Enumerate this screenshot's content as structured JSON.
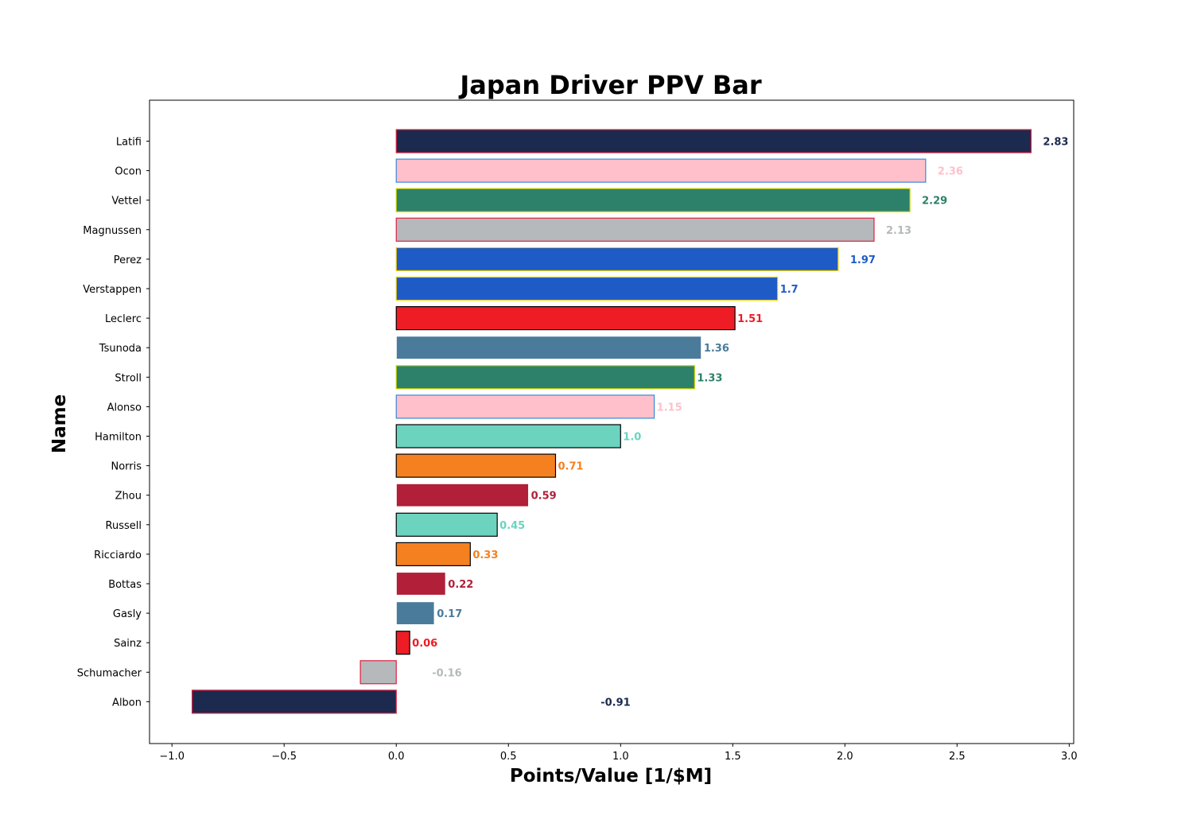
{
  "chart_data": {
    "type": "bar",
    "orientation": "horizontal",
    "title": "Japan Driver PPV Bar",
    "xlabel": "Points/Value [1/$M]",
    "ylabel": "Name",
    "xlim": [
      -1.1,
      3.02
    ],
    "xticks": [
      -1.0,
      -0.5,
      0.0,
      0.5,
      1.0,
      1.5,
      2.0,
      2.5,
      3.0
    ],
    "xtick_labels": [
      "−1.0",
      "−0.5",
      "0.0",
      "0.5",
      "1.0",
      "1.5",
      "2.0",
      "2.5",
      "3.0"
    ],
    "grid": false,
    "categories": [
      "Latifi",
      "Ocon",
      "Vettel",
      "Magnussen",
      "Perez",
      "Verstappen",
      "Leclerc",
      "Tsunoda",
      "Stroll",
      "Alonso",
      "Hamilton",
      "Norris",
      "Zhou",
      "Russell",
      "Ricciardo",
      "Bottas",
      "Gasly",
      "Sainz",
      "Schumacher",
      "Albon"
    ],
    "values": [
      2.83,
      2.36,
      2.29,
      2.13,
      1.97,
      1.7,
      1.51,
      1.36,
      1.33,
      1.15,
      1.0,
      0.71,
      0.59,
      0.45,
      0.33,
      0.22,
      0.17,
      0.06,
      -0.16,
      -0.91
    ],
    "value_labels": [
      "2.83",
      "2.36",
      "2.29",
      "2.13",
      "1.97",
      "1.7",
      "1.51",
      "1.36",
      "1.33",
      "1.15",
      "1.0",
      "0.71",
      "0.59",
      "0.45",
      "0.33",
      "0.22",
      "0.17",
      "0.06",
      "-0.16",
      "-0.91"
    ],
    "fill_colors": [
      "#1b2a4e",
      "#ffc0cb",
      "#2d806a",
      "#b6b9bb",
      "#1f5bc7",
      "#1f5bc7",
      "#ee1c24",
      "#4a7b9b",
      "#2d806a",
      "#ffc0cb",
      "#6cd3bf",
      "#f58020",
      "#b11f38",
      "#6cd3bf",
      "#f58020",
      "#b11f38",
      "#4a7b9b",
      "#ee1c24",
      "#b6b9bb",
      "#1b2a4e"
    ],
    "edge_colors": [
      "#dc2040",
      "#3b87d8",
      "#c8d400",
      "#dc2040",
      "#f2d000",
      "#f2d000",
      "#000000",
      "#ffffff",
      "#c8d400",
      "#3b87d8",
      "#000000",
      "#000000",
      "#ffffff",
      "#000000",
      "#000000",
      "#ffffff",
      "#ffffff",
      "#000000",
      "#dc2040",
      "#dc2040"
    ]
  }
}
